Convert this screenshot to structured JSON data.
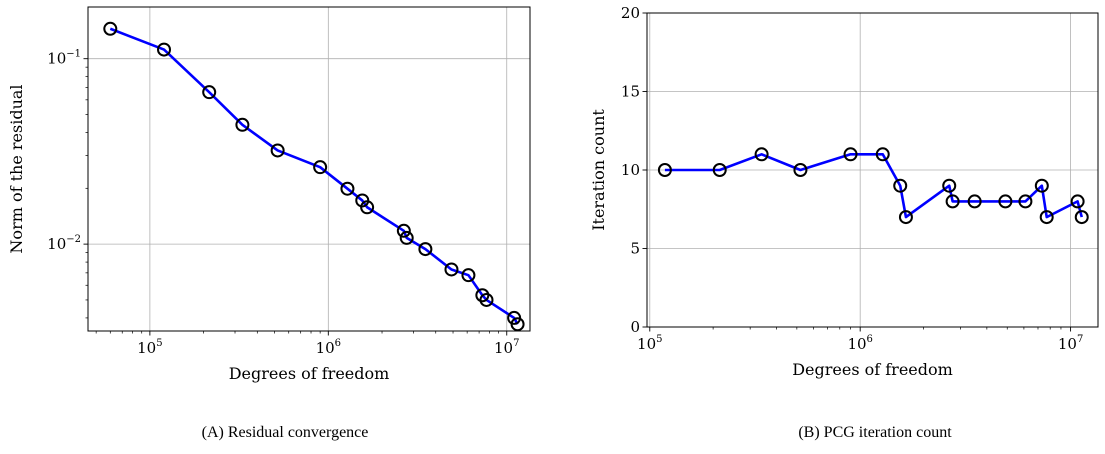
{
  "colors": {
    "line": "#0000ff",
    "marker": "#000000",
    "grid": "#b0b0b0"
  },
  "captions": {
    "a": "(A) Residual convergence",
    "b": "(B) PCG iteration count"
  },
  "chart_data": [
    {
      "type": "line",
      "title": "",
      "xlabel": "Degrees of freedom",
      "ylabel": "Norm of the residual",
      "xscale": "log",
      "yscale": "log",
      "xlim": [
        45000,
        13500000
      ],
      "ylim": [
        0.0034,
        0.19
      ],
      "xticks": [
        {
          "value": 100000,
          "base": "10",
          "exp": "5"
        },
        {
          "value": 1000000,
          "base": "10",
          "exp": "6"
        },
        {
          "value": 10000000,
          "base": "10",
          "exp": "7"
        }
      ],
      "yticks": [
        {
          "value": 0.01,
          "base": "10",
          "exp": "−2"
        },
        {
          "value": 0.1,
          "base": "10",
          "exp": "−1"
        }
      ],
      "grid": true,
      "marker": "open-circle",
      "series": [
        {
          "x": [
            60000,
            120000,
            215000,
            330000,
            520000,
            900000,
            1280000,
            1550000,
            1650000,
            2650000,
            2750000,
            3500000,
            4900000,
            6100000,
            7300000,
            7700000,
            11000000,
            11500000
          ],
          "y": [
            0.145,
            0.112,
            0.066,
            0.044,
            0.032,
            0.026,
            0.0199,
            0.0172,
            0.0158,
            0.0118,
            0.0108,
            0.0094,
            0.0073,
            0.0068,
            0.0053,
            0.005,
            0.004,
            0.0037
          ]
        }
      ]
    },
    {
      "type": "line",
      "title": "",
      "xlabel": "Degrees of freedom",
      "ylabel": "Iteration count",
      "xscale": "log",
      "yscale": "linear",
      "xlim": [
        97000,
        13500000
      ],
      "ylim": [
        0,
        20
      ],
      "xticks": [
        {
          "value": 100000,
          "base": "10",
          "exp": "5"
        },
        {
          "value": 1000000,
          "base": "10",
          "exp": "6"
        },
        {
          "value": 10000000,
          "base": "10",
          "exp": "7"
        }
      ],
      "yticks": [
        {
          "value": 0,
          "label": "0"
        },
        {
          "value": 5,
          "label": "5"
        },
        {
          "value": 10,
          "label": "10"
        },
        {
          "value": 15,
          "label": "15"
        },
        {
          "value": 20,
          "label": "20"
        }
      ],
      "grid": true,
      "marker": "open-circle",
      "series": [
        {
          "x": [
            118000,
            215000,
            340000,
            520000,
            900000,
            1280000,
            1550000,
            1650000,
            2650000,
            2750000,
            3500000,
            4900000,
            6100000,
            7300000,
            7700000,
            10800000,
            11300000
          ],
          "y": [
            10,
            10,
            11,
            10,
            11,
            11,
            9,
            7,
            9,
            8,
            8,
            8,
            8,
            9,
            7,
            8,
            7
          ]
        }
      ]
    }
  ]
}
